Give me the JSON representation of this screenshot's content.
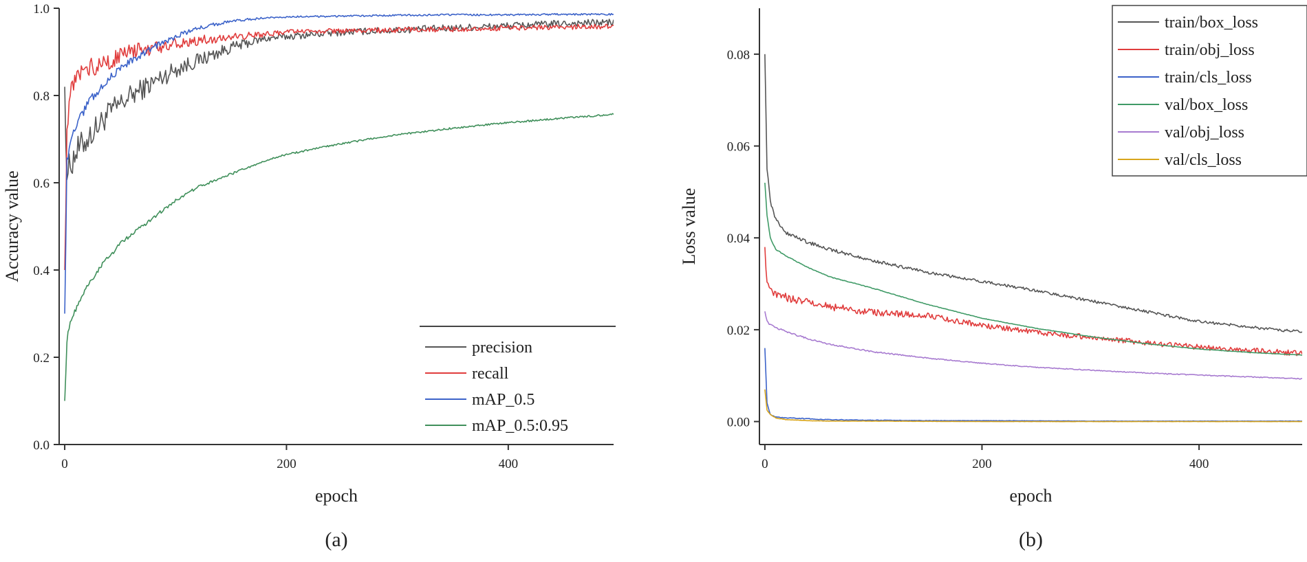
{
  "colors": {
    "precision": "#555555",
    "recall": "#e03c3c",
    "mAP_0.5": "#3b62c9",
    "mAP_0.5:0.95": "#3f8f5a",
    "train/box_loss": "#555555",
    "train/obj_loss": "#e03c3c",
    "train/cls_loss": "#3b62c9",
    "val/box_loss": "#3f9a66",
    "val/obj_loss": "#a77ad0",
    "val/cls_loss": "#d8a51b"
  },
  "chart_data": [
    {
      "id": "a",
      "type": "line",
      "caption": "(a)",
      "xlabel": "epoch",
      "ylabel": "Accuracy value",
      "xlim": [
        -5,
        495
      ],
      "ylim": [
        0.0,
        1.0
      ],
      "xticks": [
        0,
        200,
        400
      ],
      "xtick_labels": [
        "0",
        "200",
        "400"
      ],
      "yticks": [
        0.0,
        0.2,
        0.4,
        0.6,
        0.8,
        1.0
      ],
      "ytick_labels": [
        "0.0",
        "0.2",
        "0.4",
        "0.6",
        "0.8",
        "1.0"
      ],
      "legend_position": "bottom-right",
      "grid": false,
      "series": [
        {
          "name": "precision",
          "x": [
            0,
            2,
            5,
            10,
            20,
            30,
            40,
            50,
            60,
            80,
            100,
            120,
            150,
            180,
            200,
            250,
            300,
            350,
            400,
            450,
            495
          ],
          "y": [
            0.82,
            0.62,
            0.64,
            0.67,
            0.7,
            0.73,
            0.76,
            0.78,
            0.8,
            0.83,
            0.86,
            0.88,
            0.91,
            0.93,
            0.935,
            0.945,
            0.95,
            0.955,
            0.96,
            0.965,
            0.968
          ]
        },
        {
          "name": "recall",
          "x": [
            0,
            2,
            5,
            10,
            20,
            30,
            40,
            50,
            60,
            80,
            100,
            120,
            150,
            180,
            200,
            250,
            300,
            350,
            400,
            450,
            495
          ],
          "y": [
            0.4,
            0.72,
            0.8,
            0.84,
            0.86,
            0.87,
            0.88,
            0.89,
            0.9,
            0.91,
            0.92,
            0.925,
            0.935,
            0.94,
            0.945,
            0.948,
            0.95,
            0.952,
            0.955,
            0.957,
            0.958
          ]
        },
        {
          "name": "mAP_0.5",
          "x": [
            0,
            2,
            5,
            10,
            20,
            30,
            40,
            50,
            60,
            80,
            100,
            120,
            150,
            180,
            200,
            250,
            300,
            350,
            400,
            450,
            495
          ],
          "y": [
            0.3,
            0.65,
            0.69,
            0.73,
            0.78,
            0.81,
            0.84,
            0.86,
            0.88,
            0.91,
            0.935,
            0.955,
            0.97,
            0.978,
            0.98,
            0.982,
            0.984,
            0.985,
            0.985,
            0.986,
            0.986
          ]
        },
        {
          "name": "mAP_0.5:0.95",
          "x": [
            0,
            2,
            5,
            10,
            20,
            30,
            40,
            50,
            60,
            80,
            100,
            120,
            150,
            180,
            200,
            250,
            300,
            350,
            400,
            450,
            495
          ],
          "y": [
            0.1,
            0.24,
            0.28,
            0.31,
            0.36,
            0.4,
            0.43,
            0.46,
            0.48,
            0.52,
            0.56,
            0.59,
            0.62,
            0.65,
            0.665,
            0.69,
            0.71,
            0.725,
            0.738,
            0.748,
            0.757
          ]
        }
      ]
    },
    {
      "id": "b",
      "type": "line",
      "caption": "(b)",
      "xlabel": "epoch",
      "ylabel": "Loss value",
      "xlim": [
        -5,
        495
      ],
      "ylim": [
        -0.005,
        0.09
      ],
      "xticks": [
        0,
        200,
        400
      ],
      "xtick_labels": [
        "0",
        "200",
        "400"
      ],
      "yticks": [
        0.0,
        0.02,
        0.04,
        0.06,
        0.08
      ],
      "ytick_labels": [
        "0.00",
        "0.02",
        "0.04",
        "0.06",
        "0.08"
      ],
      "legend_position": "top-right",
      "grid": false,
      "series": [
        {
          "name": "train/box_loss",
          "x": [
            0,
            2,
            5,
            10,
            20,
            40,
            60,
            100,
            150,
            200,
            250,
            300,
            350,
            400,
            450,
            495
          ],
          "y": [
            0.08,
            0.055,
            0.048,
            0.044,
            0.041,
            0.039,
            0.0375,
            0.035,
            0.0325,
            0.0305,
            0.0285,
            0.0263,
            0.024,
            0.0218,
            0.0205,
            0.0195
          ]
        },
        {
          "name": "train/obj_loss",
          "x": [
            0,
            2,
            5,
            10,
            20,
            40,
            60,
            100,
            150,
            200,
            250,
            300,
            350,
            400,
            450,
            495
          ],
          "y": [
            0.038,
            0.03,
            0.0285,
            0.0278,
            0.027,
            0.026,
            0.025,
            0.0238,
            0.023,
            0.021,
            0.0195,
            0.0183,
            0.0172,
            0.0162,
            0.0155,
            0.0148
          ]
        },
        {
          "name": "train/cls_loss",
          "x": [
            0,
            2,
            5,
            10,
            20,
            40,
            60,
            100,
            150,
            200,
            300,
            400,
            495
          ],
          "y": [
            0.016,
            0.004,
            0.0015,
            0.001,
            0.0008,
            0.0006,
            0.0004,
            0.0003,
            0.0002,
            0.0002,
            0.0001,
            0.0001,
            0.0001
          ]
        },
        {
          "name": "val/box_loss",
          "x": [
            0,
            2,
            5,
            10,
            20,
            40,
            60,
            100,
            150,
            200,
            250,
            300,
            350,
            400,
            450,
            495
          ],
          "y": [
            0.052,
            0.045,
            0.04,
            0.0375,
            0.036,
            0.0335,
            0.0315,
            0.029,
            0.0255,
            0.0225,
            0.0203,
            0.0185,
            0.017,
            0.0158,
            0.015,
            0.0145
          ]
        },
        {
          "name": "val/obj_loss",
          "x": [
            0,
            2,
            5,
            10,
            20,
            40,
            60,
            100,
            150,
            200,
            250,
            300,
            350,
            400,
            450,
            495
          ],
          "y": [
            0.024,
            0.022,
            0.021,
            0.0205,
            0.0195,
            0.018,
            0.0168,
            0.0152,
            0.0138,
            0.0127,
            0.0118,
            0.0112,
            0.0106,
            0.0101,
            0.0097,
            0.0093
          ]
        },
        {
          "name": "val/cls_loss",
          "x": [
            0,
            2,
            5,
            10,
            20,
            40,
            60,
            100,
            200,
            300,
            400,
            495
          ],
          "y": [
            0.007,
            0.0025,
            0.0015,
            0.0008,
            0.0004,
            0.0002,
            0.0001,
            0.0001,
            0.0,
            0.0,
            0.0,
            0.0
          ]
        }
      ]
    }
  ]
}
